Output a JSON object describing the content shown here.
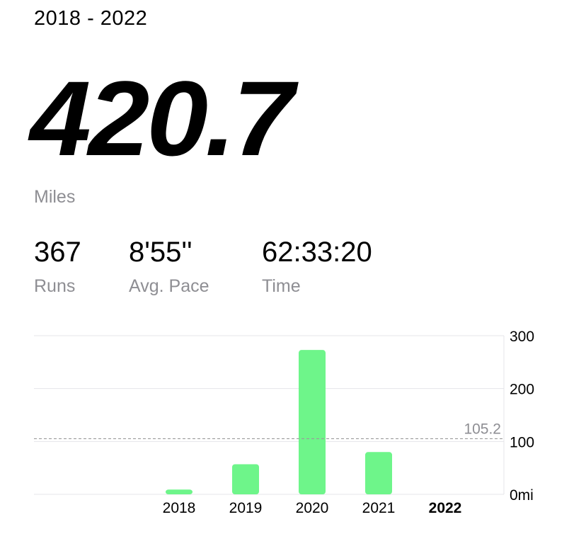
{
  "header": {
    "range": "2018 - 2022"
  },
  "summary": {
    "total": "420.7",
    "unit": "Miles"
  },
  "stats": [
    {
      "value": "367",
      "label": "Runs"
    },
    {
      "value": "8'55''",
      "label": "Avg. Pace"
    },
    {
      "value": "62:33:20",
      "label": "Time"
    }
  ],
  "colors": {
    "bar": "#6ef58a",
    "grid": "#e5e5ea",
    "average_line": "#9a9a9a"
  },
  "chart_data": {
    "type": "bar",
    "categories": [
      "2018",
      "2019",
      "2020",
      "2021",
      "2022"
    ],
    "values": [
      9,
      57,
      273,
      80,
      0
    ],
    "ylim": [
      0,
      300
    ],
    "y_ticks": [
      "0mi",
      "100",
      "200",
      "300"
    ],
    "average": 105.2,
    "average_label": "105.2",
    "highlighted_category": "2022",
    "grid": true
  }
}
